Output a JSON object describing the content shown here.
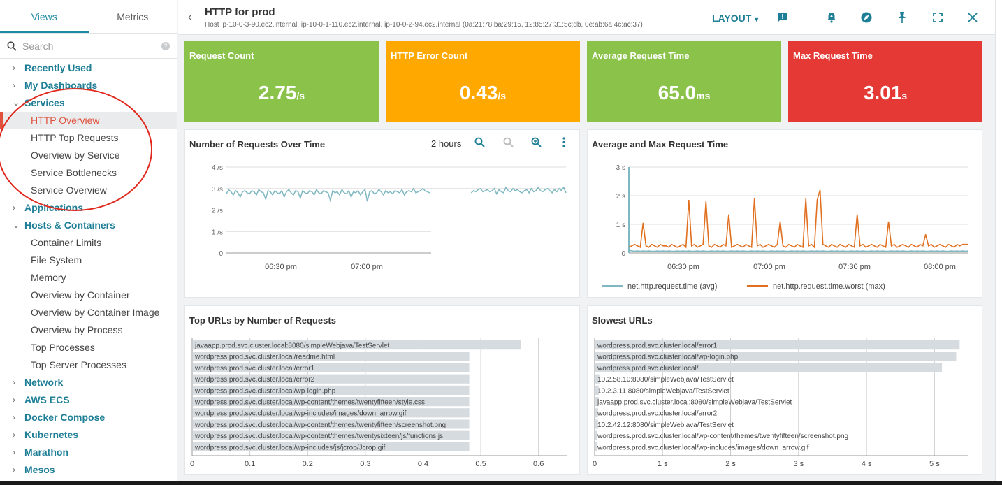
{
  "sidebar": {
    "tabs": [
      "Views",
      "Metrics"
    ],
    "search_placeholder": "Search",
    "items": [
      {
        "label": "Recently Used",
        "kind": "group",
        "chev": "›"
      },
      {
        "label": "My Dashboards",
        "kind": "group",
        "chev": "›"
      },
      {
        "label": "Services",
        "kind": "group",
        "chev": "⌄"
      },
      {
        "label": "HTTP Overview",
        "kind": "sub",
        "active": true
      },
      {
        "label": "HTTP Top Requests",
        "kind": "sub"
      },
      {
        "label": "Overview by Service",
        "kind": "sub"
      },
      {
        "label": "Service Bottlenecks",
        "kind": "sub"
      },
      {
        "label": "Service Overview",
        "kind": "sub"
      },
      {
        "label": "Applications",
        "kind": "group",
        "chev": "›"
      },
      {
        "label": "Hosts & Containers",
        "kind": "group",
        "chev": "⌄"
      },
      {
        "label": "Container Limits",
        "kind": "sub"
      },
      {
        "label": "File System",
        "kind": "sub"
      },
      {
        "label": "Memory",
        "kind": "sub"
      },
      {
        "label": "Overview by Container",
        "kind": "sub"
      },
      {
        "label": "Overview by Container Image",
        "kind": "sub"
      },
      {
        "label": "Overview by Process",
        "kind": "sub"
      },
      {
        "label": "Top Processes",
        "kind": "sub"
      },
      {
        "label": "Top Server Processes",
        "kind": "sub"
      },
      {
        "label": "Network",
        "kind": "group",
        "chev": "›"
      },
      {
        "label": "AWS ECS",
        "kind": "group",
        "chev": "›"
      },
      {
        "label": "Docker Compose",
        "kind": "group",
        "chev": "›"
      },
      {
        "label": "Kubernetes",
        "kind": "group",
        "chev": "›"
      },
      {
        "label": "Marathon",
        "kind": "group",
        "chev": "›"
      },
      {
        "label": "Mesos",
        "kind": "group",
        "chev": "›"
      }
    ]
  },
  "header": {
    "title": "HTTP for prod",
    "subtitle": "Host ip-10-0-3-90.ec2.internal, ip-10-0-1-110.ec2.internal, ip-10-0-2-94.ec2.internal (0a:21:78:ba:29:15, 12:85:27:31:5c:db, 0e:ab:6a:4c:ac:37)",
    "layout_label": "LAYOUT",
    "icons": [
      "comment-icon",
      "alert-bell-icon",
      "explore-icon",
      "pin-icon",
      "fullscreen-icon",
      "close-icon"
    ]
  },
  "kpis": [
    {
      "label": "Request Count",
      "value": "2.75",
      "unit": "/s",
      "color": "#8bc34a"
    },
    {
      "label": "HTTP Error Count",
      "value": "0.43",
      "unit": "/s",
      "color": "#ffa800"
    },
    {
      "label": "Average Request Time",
      "value": "65.0",
      "unit": "ms",
      "color": "#8bc34a"
    },
    {
      "label": "Max Request Time",
      "value": "3.01",
      "unit": "s",
      "color": "#e53935"
    }
  ],
  "panels": {
    "requests": {
      "title": "Number of Requests Over Time",
      "range": "2 hours"
    },
    "avgmax": {
      "title": "Average and Max Request Time"
    },
    "topurls": {
      "title": "Top URLs by Number of Requests"
    },
    "slowest": {
      "title": "Slowest URLs"
    }
  },
  "chart_data": [
    {
      "type": "line",
      "title": "Number of Requests Over Time",
      "y_ticks": [
        "4 /s",
        "3 /s",
        "2 /s",
        "1 /s",
        "0"
      ],
      "x_ticks": [
        "06:30 pm",
        "07:00 pm"
      ],
      "ylim": [
        0,
        4
      ],
      "series": [
        {
          "color": "#7fb8c0",
          "values": [
            2.75,
            2.95,
            2.85,
            2.7,
            2.9,
            2.8,
            2.6,
            2.85,
            2.9,
            2.8,
            2.75,
            2.9,
            2.85,
            2.7,
            2.95,
            2.85,
            2.8,
            2.5,
            2.9,
            2.85,
            2.7,
            2.9,
            2.8,
            2.75,
            2.9,
            2.6,
            2.85,
            2.95,
            2.8,
            2.7,
            2.9,
            2.85,
            2.55,
            2.9,
            2.8,
            2.75,
            2.9,
            2.85,
            2.7,
            2.95,
            2.8,
            2.75,
            2.9,
            2.85,
            2.8,
            2.45,
            2.9,
            2.8,
            2.85,
            2.7,
            2.95,
            2.8,
            2.75,
            2.9,
            2.6,
            2.85,
            2.8,
            2.9,
            2.7,
            2.85,
            2.95,
            2.4,
            2.85,
            2.9,
            2.75,
            2.8,
            2.95,
            2.85,
            2.7,
            2.9,
            2.8,
            2.85,
            2.75,
            2.9,
            2.85,
            2.8,
            2.95,
            2.7,
            2.85,
            2.9,
            2.85,
            3.0,
            2.8,
            2.85,
            2.9,
            3.0,
            2.9,
            2.85,
            2.8,
            2.95,
            2.85,
            3.05,
            2.9,
            2.95,
            2.85,
            2.9,
            3.0,
            2.8,
            2.85,
            2.9,
            3.0,
            2.85,
            2.9,
            2.95,
            2.85,
            3.05,
            2.8,
            2.9,
            2.85,
            2.95,
            3.0,
            2.85,
            2.9,
            2.95,
            2.85,
            2.9,
            3.0,
            2.75,
            2.95,
            2.85,
            2.8,
            3.05,
            2.9,
            2.85,
            3.0,
            2.9,
            2.95,
            2.85,
            2.8,
            2.9,
            2.95,
            2.8,
            3.0,
            2.85,
            2.9,
            3.05,
            2.9,
            2.85,
            2.95,
            3.0,
            2.9,
            2.8,
            2.95,
            2.85,
            3.0,
            2.9,
            3.05,
            2.8
          ]
        }
      ]
    },
    {
      "type": "line",
      "title": "Average and Max Request Time",
      "y_ticks": [
        "3 s",
        "2 s",
        "1 s",
        "0"
      ],
      "x_ticks": [
        "06:30 pm",
        "07:00 pm",
        "07:30 pm",
        "08:00 pm"
      ],
      "ylim": [
        0,
        3
      ],
      "series": [
        {
          "name": "net.http.request.time (avg)",
          "color": "#7fb8c0",
          "values": [
            0.1,
            0.07,
            0.06,
            0.07,
            0.06,
            0.07,
            0.06,
            0.07,
            0.06,
            0.06,
            0.07,
            0.06,
            0.07,
            0.06,
            0.07,
            0.06,
            0.06,
            0.07,
            0.06,
            0.07,
            0.06,
            0.07,
            0.06,
            0.06,
            0.07,
            0.06,
            0.07,
            0.06,
            0.06,
            0.07,
            0.06,
            0.07,
            0.06,
            0.07,
            0.06,
            0.06,
            0.07,
            0.06,
            0.07,
            0.06,
            0.07,
            0.06,
            0.06,
            0.07,
            0.06,
            0.07,
            0.06,
            0.07,
            0.06,
            0.06,
            0.07,
            0.06,
            0.07,
            0.06,
            0.07,
            0.06,
            0.06,
            0.07,
            0.06,
            0.07,
            0.06,
            0.07,
            0.06,
            0.06,
            0.07,
            0.06,
            0.07,
            0.06,
            0.07,
            0.06,
            0.06,
            0.07,
            0.06,
            0.07,
            0.06,
            0.07,
            0.06,
            0.06,
            0.07,
            0.06,
            0.07,
            0.06,
            0.07,
            0.06,
            0.06,
            0.07,
            0.06,
            0.07,
            0.06,
            0.07,
            0.06,
            0.06,
            0.07,
            0.06,
            0.07,
            0.06,
            0.07,
            0.06,
            0.06,
            0.07,
            0.06,
            0.07,
            0.06,
            0.07,
            0.06,
            0.06,
            0.07,
            0.06,
            0.07,
            0.06,
            0.07,
            0.06,
            0.06,
            0.07,
            0.06,
            0.07,
            0.06,
            0.07,
            0.06,
            0.07
          ]
        },
        {
          "name": "net.http.request.time.worst (max)",
          "color": "#e07020",
          "values": [
            0.2,
            0.25,
            0.3,
            0.25,
            0.2,
            1.05,
            0.25,
            0.2,
            0.3,
            0.25,
            0.2,
            0.3,
            0.25,
            0.25,
            0.2,
            0.3,
            0.25,
            0.2,
            0.25,
            0.3,
            0.2,
            1.85,
            0.25,
            0.3,
            0.2,
            0.25,
            0.3,
            1.8,
            0.25,
            0.2,
            0.3,
            0.25,
            0.2,
            0.3,
            0.25,
            1.35,
            0.2,
            0.25,
            0.3,
            0.25,
            0.2,
            0.3,
            0.25,
            0.2,
            1.9,
            0.25,
            0.3,
            0.2,
            0.25,
            0.3,
            0.25,
            0.2,
            0.3,
            1.1,
            0.25,
            0.2,
            0.3,
            0.25,
            0.2,
            0.3,
            0.25,
            0.2,
            1.9,
            0.25,
            0.3,
            0.2,
            1.85,
            2.2,
            0.3,
            0.25,
            0.2,
            0.3,
            0.25,
            0.2,
            0.3,
            0.25,
            0.2,
            0.3,
            0.25,
            0.2,
            1.35,
            0.25,
            0.3,
            0.2,
            0.25,
            0.3,
            0.25,
            0.2,
            0.3,
            0.25,
            0.2,
            1.1,
            0.25,
            0.3,
            0.2,
            0.25,
            0.3,
            0.25,
            0.2,
            0.3,
            0.25,
            0.2,
            0.3,
            0.25,
            0.65,
            0.25,
            0.3,
            0.2,
            0.25,
            0.3,
            0.25,
            0.2,
            0.3,
            0.25,
            0.2,
            0.3,
            0.25,
            0.3,
            0.3,
            0.3
          ]
        }
      ]
    },
    {
      "type": "bar",
      "title": "Top URLs by Number of Requests",
      "orientation": "horizontal",
      "x_ticks": [
        "0",
        "0.1",
        "0.2",
        "0.3",
        "0.4",
        "0.5",
        "0.6"
      ],
      "xlim": [
        0,
        0.65
      ],
      "categories": [
        "javaapp.prod.svc.cluster.local:8080/simpleWebjava/TestServlet",
        "wordpress.prod.svc.cluster.local/readme.html",
        "wordpress.prod.svc.cluster.local/error1",
        "wordpress.prod.svc.cluster.local/error2",
        "wordpress.prod.svc.cluster.local/wp-login.php",
        "wordpress.prod.svc.cluster.local/wp-content/themes/twentyfifteen/style.css",
        "wordpress.prod.svc.cluster.local/wp-includes/images/down_arrow.gif",
        "wordpress.prod.svc.cluster.local/wp-content/themes/twentyfifteen/screenshot.png",
        "wordpress.prod.svc.cluster.local/wp-content/themes/twentysixteen/js/functions.js",
        "wordpress.prod.svc.cluster.local/wp-includes/js/jcrop/Jcrop.gif"
      ],
      "values": [
        0.57,
        0.48,
        0.48,
        0.48,
        0.48,
        0.48,
        0.48,
        0.48,
        0.48,
        0.48
      ],
      "color": "#d5dbdf"
    },
    {
      "type": "bar",
      "title": "Slowest URLs",
      "orientation": "horizontal",
      "x_ticks": [
        "0",
        "1 s",
        "2 s",
        "3 s",
        "4 s",
        "5 s"
      ],
      "xlim": [
        0,
        5.5
      ],
      "categories": [
        "wordpress.prod.svc.cluster.local/error1",
        "wordpress.prod.svc.cluster.local/wp-login.php",
        "wordpress.prod.svc.cluster.local/",
        "10.2.58.10:8080/simpleWebjava/TestServlet",
        "10.2.3.11:8080/simpleWebjava/TestServlet",
        "javaapp.prod.svc.cluster.local:8080/simpleWebjava/TestServlet",
        "wordpress.prod.svc.cluster.local/error2",
        "10.2.42.12:8080/simpleWebjava/TestServlet",
        "wordpress.prod.svc.cluster.local/wp-content/themes/twentyfifteen/screenshot.png",
        "wordpress.prod.svc.cluster.local/wp-includes/images/down_arrow.gif"
      ],
      "values": [
        5.37,
        5.32,
        5.11,
        0.07,
        0.06,
        0.06,
        0.05,
        0.05,
        0.04,
        0.04
      ],
      "color": "#d5dbdf"
    }
  ]
}
